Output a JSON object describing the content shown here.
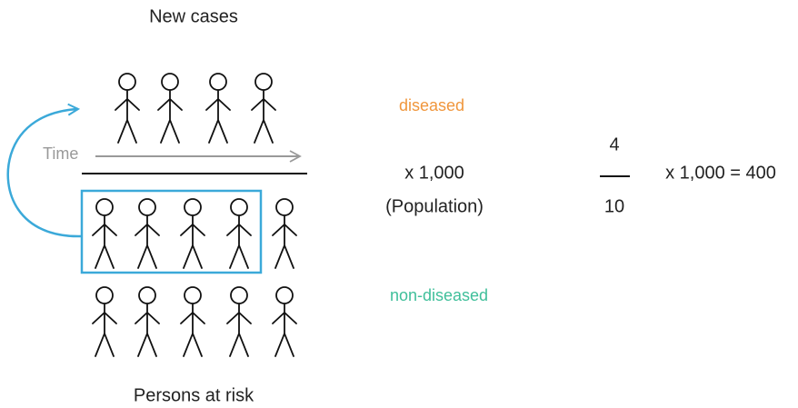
{
  "header": {
    "title": "New cases"
  },
  "labels": {
    "diseased": "diseased",
    "time": "Time",
    "non_diseased": "non-diseased"
  },
  "formula": {
    "multiplier": "x 1,000",
    "denominator_label": "(Population)",
    "numerator": "4",
    "denominator": "10",
    "result": "x 1,000 = 400"
  },
  "footer": {
    "title": "Persons at risk"
  }
}
